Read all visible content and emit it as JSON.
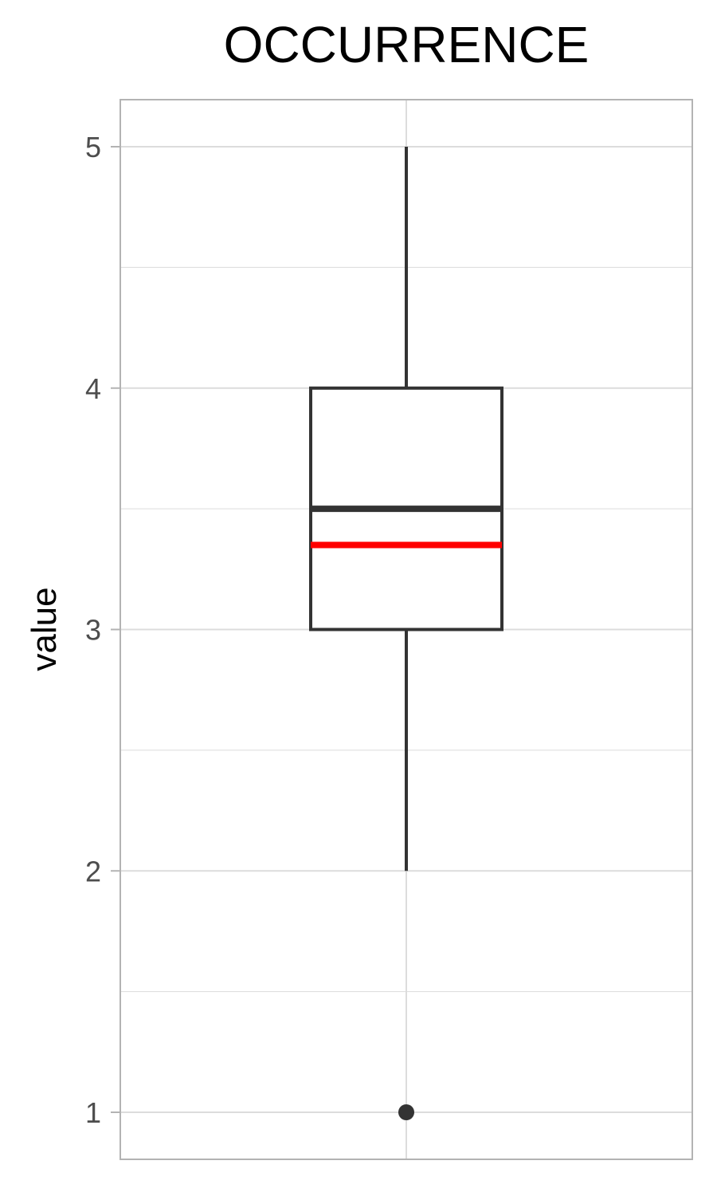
{
  "chart_data": {
    "type": "boxplot",
    "title": "OCCURRENCE",
    "xlabel": "",
    "ylabel": "value",
    "ylim": [
      0.8,
      5.2
    ],
    "yticks": [
      1,
      2,
      3,
      4,
      5
    ],
    "grid": true,
    "box": {
      "whisker_low": 2,
      "q1": 3,
      "median": 3.5,
      "q3": 4,
      "whisker_high": 5,
      "mean": 3.35,
      "outliers": [
        1
      ]
    },
    "colors": {
      "box_stroke": "#333333",
      "mean_line": "#ff0000",
      "grid": "#dcdcdc",
      "panel_border": "#b3b3b3"
    }
  }
}
